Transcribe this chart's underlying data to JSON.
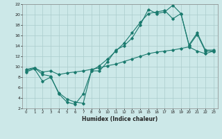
{
  "xlabel": "Humidex (Indice chaleur)",
  "bg_color": "#cce8e8",
  "grid_color": "#aacccc",
  "line_color": "#1a7a6e",
  "xlim": [
    -0.5,
    23.5
  ],
  "ylim": [
    2,
    22
  ],
  "xtick_labels": [
    "0",
    "1",
    "2",
    "3",
    "4",
    "5",
    "6",
    "7",
    "8",
    "9",
    "10",
    "11",
    "12",
    "13",
    "14",
    "15",
    "16",
    "17",
    "18",
    "19",
    "20",
    "21",
    "22",
    "23"
  ],
  "xtick_vals": [
    0,
    1,
    2,
    3,
    4,
    5,
    6,
    7,
    8,
    9,
    10,
    11,
    12,
    13,
    14,
    15,
    16,
    17,
    18,
    19,
    20,
    21,
    22,
    23
  ],
  "ytick_vals": [
    2,
    4,
    6,
    8,
    10,
    12,
    14,
    16,
    18,
    20,
    22
  ],
  "series1_x": [
    0,
    1,
    2,
    3,
    4,
    5,
    6,
    7,
    8,
    9,
    10,
    11,
    12,
    13,
    14,
    15,
    16,
    17,
    18,
    19,
    20,
    21,
    22,
    23
  ],
  "series1_y": [
    9.0,
    9.6,
    7.2,
    8.0,
    5.0,
    3.8,
    3.2,
    3.0,
    9.2,
    9.2,
    11.0,
    13.2,
    14.0,
    15.5,
    18.0,
    21.0,
    20.2,
    20.5,
    21.8,
    20.2,
    14.0,
    16.2,
    13.0,
    13.0
  ],
  "series2_x": [
    0,
    1,
    2,
    3,
    4,
    5,
    6,
    7,
    8,
    9,
    10,
    11,
    12,
    13,
    14,
    15,
    16,
    17,
    18,
    19,
    20,
    21,
    22,
    23
  ],
  "series2_y": [
    9.2,
    9.8,
    8.5,
    8.2,
    4.8,
    3.2,
    2.8,
    4.8,
    9.2,
    10.2,
    11.5,
    13.0,
    14.5,
    16.5,
    18.5,
    20.2,
    20.5,
    20.8,
    19.2,
    20.2,
    14.2,
    16.5,
    13.2,
    13.2
  ],
  "series3_x": [
    0,
    1,
    2,
    3,
    4,
    5,
    6,
    7,
    8,
    9,
    10,
    11,
    12,
    13,
    14,
    15,
    16,
    17,
    18,
    19,
    20,
    21,
    22,
    23
  ],
  "series3_y": [
    9.5,
    9.8,
    9.0,
    9.2,
    8.5,
    8.8,
    9.0,
    9.2,
    9.5,
    9.8,
    10.2,
    10.5,
    11.0,
    11.5,
    12.0,
    12.5,
    12.8,
    13.0,
    13.2,
    13.5,
    13.8,
    13.0,
    12.5,
    13.0
  ]
}
